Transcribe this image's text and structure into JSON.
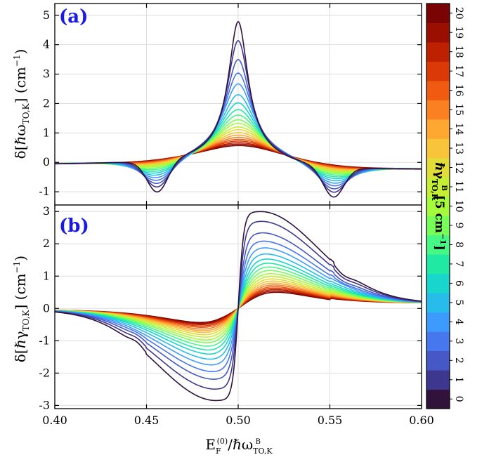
{
  "chart_data": [
    {
      "panel": "(a)",
      "type": "line",
      "ylabel": "δ[ℏω_TO,K] (cm⁻¹)",
      "xlim": [
        0.4,
        0.6
      ],
      "ylim": [
        -1.45,
        5.4
      ],
      "yticks": [
        "-1",
        "0",
        "1",
        "2",
        "3",
        "4",
        "5"
      ],
      "grid": true,
      "shape": "peak",
      "series_gamma": [
        0,
        1,
        2,
        3,
        4,
        5,
        6,
        7,
        8,
        9,
        10,
        11,
        12,
        13,
        14,
        15,
        16,
        17,
        18,
        19,
        20
      ],
      "features": {
        "peak_x": 0.5,
        "peak_values_by_gamma": [
          5.2,
          4.5,
          3.8,
          3.3,
          2.9,
          2.5,
          2.2,
          1.95,
          1.75,
          1.58,
          1.45,
          1.32,
          1.22,
          1.12,
          1.03,
          0.95,
          0.88,
          0.82,
          0.76,
          0.71,
          0.66
        ],
        "dip_x": [
          0.456,
          0.552
        ],
        "dip_values_by_gamma": [
          -1.1,
          -0.97,
          -0.88,
          -0.8,
          -0.73,
          -0.66,
          -0.6,
          -0.55,
          -0.5,
          -0.46,
          -0.42,
          -0.39,
          -0.36,
          -0.33,
          -0.31,
          -0.29,
          -0.27,
          -0.25,
          -0.24,
          -0.23,
          -0.22
        ],
        "tail_value": -0.25
      }
    },
    {
      "panel": "(b)",
      "type": "line",
      "xlabel": "E_F^(0)/ℏω^B_TO,K",
      "ylabel": "δ[ℏγ_TO,K] (cm⁻¹)",
      "xlim": [
        0.4,
        0.6
      ],
      "ylim": [
        -3.1,
        3.2
      ],
      "xticks": [
        "0.40",
        "0.45",
        "0.50",
        "0.55",
        "0.60"
      ],
      "yticks": [
        "-3",
        "-2",
        "-1",
        "0",
        "1",
        "2",
        "3"
      ],
      "grid": true,
      "shape": "dispersive",
      "series_gamma": [
        0,
        1,
        2,
        3,
        4,
        5,
        6,
        7,
        8,
        9,
        10,
        11,
        12,
        13,
        14,
        15,
        16,
        17,
        18,
        19,
        20
      ],
      "features": {
        "max_x": 0.512,
        "max_values_by_gamma": [
          3.0,
          2.7,
          2.35,
          2.1,
          1.9,
          1.72,
          1.57,
          1.45,
          1.34,
          1.24,
          1.15,
          1.07,
          1.0,
          0.94,
          0.88,
          0.83,
          0.78,
          0.74,
          0.7,
          0.66,
          0.62
        ],
        "min_x": 0.488,
        "min_values_by_gamma": [
          -2.85,
          -2.5,
          -2.2,
          -1.97,
          -1.77,
          -1.6,
          -1.45,
          -1.33,
          -1.22,
          -1.12,
          -1.04,
          -0.96,
          -0.89,
          -0.83,
          -0.78,
          -0.73,
          -0.68,
          -0.64,
          -0.6,
          -0.57,
          -0.54
        ]
      }
    }
  ],
  "labels": {
    "panel_a": "(a)",
    "panel_b": "(b)"
  },
  "colorbar": {
    "ticks": [
      "0",
      "1",
      "2",
      "3",
      "4",
      "5",
      "6",
      "7",
      "8",
      "9",
      "10",
      "11",
      "12",
      "13",
      "14",
      "15",
      "16",
      "17",
      "18",
      "19",
      "20"
    ],
    "label": "ℏγ^B_TO,K [5 cm⁻¹]",
    "colormap": "turbo",
    "colors": [
      "#30123b",
      "#3e378f",
      "#4558c5",
      "#4777ef",
      "#3e9bfe",
      "#28bceb",
      "#18d6cb",
      "#20e9a4",
      "#46f884",
      "#78fe59",
      "#a4fc3c",
      "#c5ef33",
      "#e2dc38",
      "#f7c43a",
      "#fea832",
      "#fb8022",
      "#f05b12",
      "#db3a07",
      "#be2102",
      "#9b0f01",
      "#7a0403"
    ]
  }
}
